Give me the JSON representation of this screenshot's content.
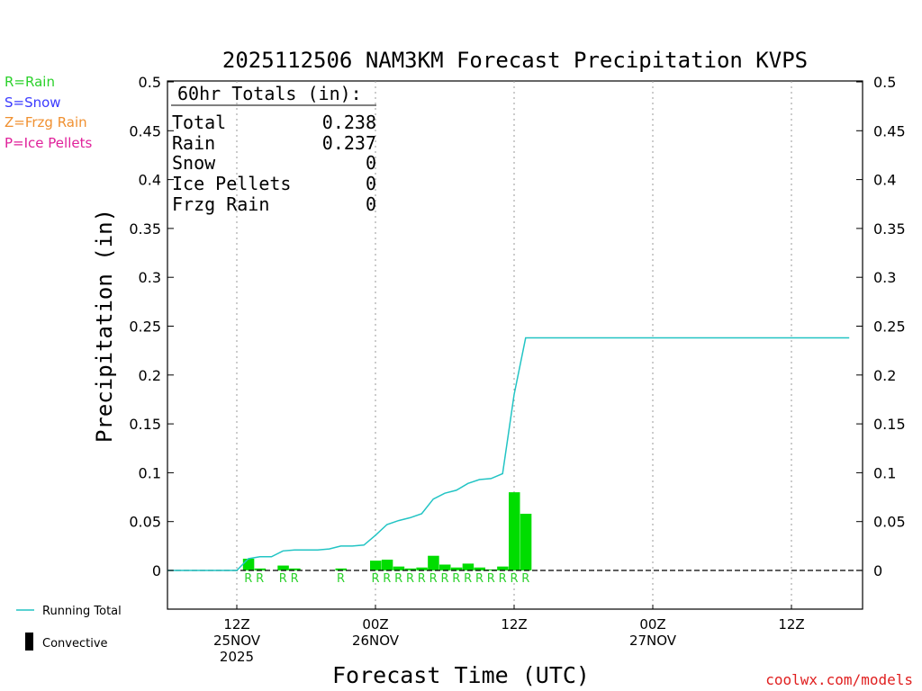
{
  "chart_data": {
    "type": "bar",
    "title": "2025112506 NAM3KM Forecast Precipitation KVPS",
    "xlabel": "Forecast Time (UTC)",
    "ylabel": "Precipitation (in)",
    "ylim": [
      -0.04,
      0.5
    ],
    "yticks": [
      0,
      0.05,
      0.1,
      0.15,
      0.2,
      0.25,
      0.3,
      0.35,
      0.4,
      0.45,
      0.5
    ],
    "ytick_labels": [
      "0",
      "0.05",
      "0.1",
      "0.15",
      "0.2",
      "0.25",
      "0.3",
      "0.35",
      "0.4",
      "0.45",
      "0.5"
    ],
    "xlim_hours": [
      -1,
      59
    ],
    "xticks": [
      {
        "hour": 6,
        "line1": "12Z",
        "line2": "25NOV",
        "line3": "2025"
      },
      {
        "hour": 18,
        "line1": "00Z",
        "line2": "26NOV",
        "line3": ""
      },
      {
        "hour": 30,
        "line1": "12Z",
        "line2": "",
        "line3": ""
      },
      {
        "hour": 42,
        "line1": "00Z",
        "line2": "27NOV",
        "line3": ""
      },
      {
        "hour": 54,
        "line1": "12Z",
        "line2": "",
        "line3": ""
      }
    ],
    "legend": [
      {
        "text": "R=Rain",
        "color": "#2bd12b"
      },
      {
        "text": "S=Snow",
        "color": "#3a3aff"
      },
      {
        "text": "Z=Frzg Rain",
        "color": "#f09030"
      },
      {
        "text": "P=Ice Pellets",
        "color": "#e0209a"
      }
    ],
    "series_legend": {
      "running_total": "Running Total",
      "convective": "Convective"
    },
    "totals": {
      "header": "60hr Totals (in):",
      "rows": [
        {
          "label": "Total",
          "value": "0.238"
        },
        {
          "label": "Rain",
          "value": "0.237"
        },
        {
          "label": "Snow",
          "value": "0"
        },
        {
          "label": "Ice Pellets",
          "value": "0"
        },
        {
          "label": "Frzg Rain",
          "value": "0"
        }
      ]
    },
    "bars": {
      "hours": [
        7,
        8,
        10,
        11,
        15,
        18,
        19,
        20,
        21,
        22,
        23,
        24,
        25,
        26,
        27,
        28,
        29,
        30,
        31
      ],
      "values": [
        0.012,
        0.002,
        0.005,
        0.002,
        0.002,
        0.01,
        0.011,
        0.004,
        0.002,
        0.003,
        0.015,
        0.006,
        0.003,
        0.007,
        0.003,
        0.001,
        0.004,
        0.08,
        0.058
      ],
      "color": "#00dd00"
    },
    "ptype_markers": {
      "hours": [
        7,
        8,
        10,
        11,
        15,
        18,
        19,
        20,
        21,
        22,
        23,
        24,
        25,
        26,
        27,
        28,
        29,
        30,
        31
      ],
      "letter": "R",
      "color": "#2bd12b"
    },
    "running_total": {
      "hours": [
        0,
        1,
        2,
        3,
        4,
        5,
        6,
        7,
        8,
        9,
        10,
        11,
        12,
        13,
        14,
        15,
        16,
        17,
        18,
        19,
        20,
        21,
        22,
        23,
        24,
        25,
        26,
        27,
        28,
        29,
        30,
        31,
        59
      ],
      "values": [
        0,
        0,
        0,
        0,
        0,
        0,
        0,
        0.012,
        0.014,
        0.014,
        0.02,
        0.021,
        0.021,
        0.021,
        0.022,
        0.025,
        0.025,
        0.026,
        0.036,
        0.047,
        0.051,
        0.054,
        0.058,
        0.073,
        0.079,
        0.082,
        0.089,
        0.093,
        0.094,
        0.099,
        0.18,
        0.238,
        0.238
      ],
      "color": "#22c4c4"
    }
  },
  "credit": "coolwx.com/models"
}
